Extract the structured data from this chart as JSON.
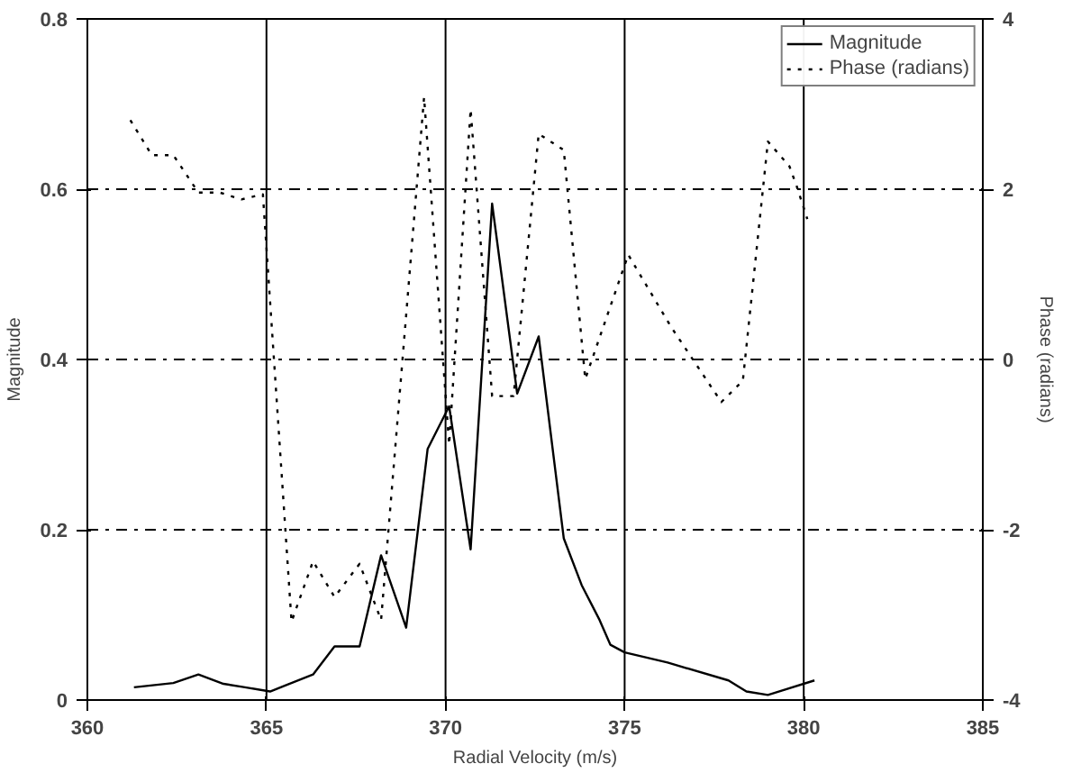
{
  "chart_data": {
    "type": "line",
    "xlabel": "Radial Velocity (m/s)",
    "ylabel": "Magnitude",
    "y2label": "Phase (radians)",
    "xlim": [
      360,
      385
    ],
    "xticks": [
      360,
      365,
      370,
      375,
      380,
      385
    ],
    "ylim": [
      0,
      0.8
    ],
    "yticks": [
      0,
      0.2,
      0.4,
      0.6,
      0.8
    ],
    "y2lim": [
      -4,
      4
    ],
    "y2ticks": [
      -4,
      -2,
      0,
      2,
      4
    ],
    "grid": true,
    "legend": "top right",
    "marker": "none",
    "series": [
      {
        "name": "Magnitude",
        "color": "#000000",
        "line_style": "solid",
        "x": [
          361.3,
          362.4,
          363.1,
          363.8,
          364.4,
          365.1,
          366.3,
          366.9,
          367.6,
          368.2,
          368.9,
          369.5,
          370.1,
          370.7,
          371.3,
          372.0,
          372.6,
          373.3,
          373.8,
          374.3,
          374.6,
          375.0,
          376.2,
          377.9,
          378.4,
          379.0,
          380.3
        ],
        "values": [
          0.015,
          0.02,
          0.03,
          0.019,
          0.015,
          0.01,
          0.03,
          0.063,
          0.063,
          0.17,
          0.085,
          0.295,
          0.345,
          0.177,
          0.583,
          0.36,
          0.427,
          0.19,
          0.135,
          0.094,
          0.065,
          0.056,
          0.044,
          0.023,
          0.01,
          0.006,
          0.023
        ]
      },
      {
        "name": "Phase (radians)",
        "color": "#000000",
        "line_style": "dotted",
        "axis": "y2",
        "x": [
          361.2,
          361.8,
          362.4,
          363.1,
          363.7,
          364.3,
          364.9,
          365.7,
          366.3,
          366.9,
          367.6,
          368.2,
          369.4,
          370.1,
          370.7,
          371.3,
          371.9,
          372.6,
          373.3,
          373.9,
          375.1,
          376.3,
          377.7,
          378.3,
          379.0,
          379.6,
          379.8,
          380.1
        ],
        "values": [
          2.81,
          2.4,
          2.4,
          1.96,
          1.96,
          1.88,
          1.94,
          -3.08,
          -2.37,
          -2.79,
          -2.4,
          -3.06,
          3.08,
          -1.0,
          2.94,
          -0.43,
          -0.43,
          2.65,
          2.46,
          -0.23,
          1.23,
          0.38,
          -0.5,
          -0.25,
          2.56,
          2.27,
          2.04,
          1.65
        ]
      }
    ]
  }
}
